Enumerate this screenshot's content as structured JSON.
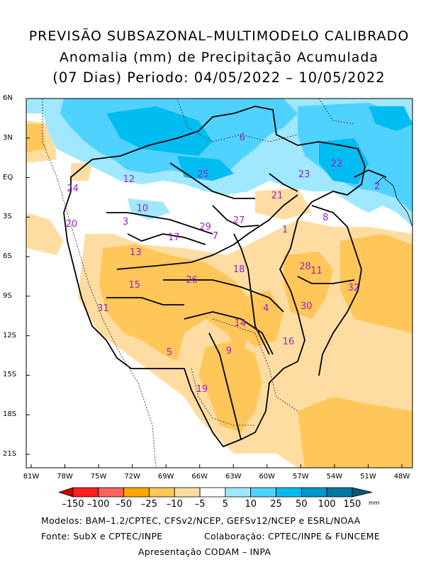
{
  "title": {
    "line1": "PREVISÃO SUBSAZONAL–MULTIMODELO CALIBRADO",
    "line2": "Anomalia (mm) de Precipitação Acumulada",
    "line3": "(07 Dias) Periodo: 04/05/2022 – 10/05/2022"
  },
  "axes": {
    "lat_labels": [
      "6N",
      "3N",
      "EQ",
      "3S",
      "6S",
      "9S",
      "12S",
      "15S",
      "18S",
      "21S"
    ],
    "lon_labels": [
      "81W",
      "78W",
      "75W",
      "72W",
      "69W",
      "66W",
      "63W",
      "60W",
      "57W",
      "54W",
      "51W",
      "48W"
    ]
  },
  "basins": [
    {
      "id": "1",
      "lon": -58.4,
      "lat": -4.0
    },
    {
      "id": "2",
      "lon": -50.2,
      "lat": -0.7
    },
    {
      "id": "3",
      "lon": -72.6,
      "lat": -3.4
    },
    {
      "id": "4",
      "lon": -60.1,
      "lat": -10.0
    },
    {
      "id": "5",
      "lon": -68.7,
      "lat": -13.3
    },
    {
      "id": "6",
      "lon": -62.2,
      "lat": 3.0
    },
    {
      "id": "7",
      "lon": -64.6,
      "lat": -4.5
    },
    {
      "id": "8",
      "lon": -54.8,
      "lat": -3.1
    },
    {
      "id": "9",
      "lon": -63.4,
      "lat": -13.2
    },
    {
      "id": "10",
      "lon": -71.1,
      "lat": -2.4
    },
    {
      "id": "11",
      "lon": -55.6,
      "lat": -7.1
    },
    {
      "id": "12",
      "lon": -72.3,
      "lat": -0.2
    },
    {
      "id": "13",
      "lon": -71.7,
      "lat": -5.7
    },
    {
      "id": "14",
      "lon": -62.4,
      "lat": -11.1
    },
    {
      "id": "15",
      "lon": -71.8,
      "lat": -8.2
    },
    {
      "id": "16",
      "lon": -58.1,
      "lat": -12.5
    },
    {
      "id": "17",
      "lon": -68.3,
      "lat": -4.6
    },
    {
      "id": "18",
      "lon": -62.5,
      "lat": -7.0
    },
    {
      "id": "19",
      "lon": -65.8,
      "lat": -16.1
    },
    {
      "id": "20",
      "lon": -77.4,
      "lat": -3.6
    },
    {
      "id": "21",
      "lon": -59.1,
      "lat": -1.4
    },
    {
      "id": "22",
      "lon": -53.8,
      "lat": 1.0
    },
    {
      "id": "23",
      "lon": -56.7,
      "lat": 0.2
    },
    {
      "id": "24",
      "lon": -77.3,
      "lat": -0.9
    },
    {
      "id": "25",
      "lon": -65.7,
      "lat": 0.2
    },
    {
      "id": "26",
      "lon": -66.7,
      "lat": -7.8
    },
    {
      "id": "27",
      "lon": -62.5,
      "lat": -3.3
    },
    {
      "id": "28",
      "lon": -56.6,
      "lat": -6.8
    },
    {
      "id": "29",
      "lon": -65.5,
      "lat": -3.8
    },
    {
      "id": "30",
      "lon": -56.5,
      "lat": -9.8
    },
    {
      "id": "31",
      "lon": -74.6,
      "lat": -10.0
    },
    {
      "id": "32",
      "lon": -52.3,
      "lat": -8.4
    }
  ],
  "colorbar": {
    "labels": [
      "–150",
      "–100",
      "–50",
      "–25",
      "–10",
      "–5",
      "5",
      "10",
      "25",
      "50",
      "100",
      "150"
    ],
    "colors": [
      "#c80000",
      "#ff1e1e",
      "#ff6060",
      "#ffa600",
      "#ffc659",
      "#ffdda2",
      "#ffffff",
      "#a0e8ff",
      "#50d2ff",
      "#00bcf0",
      "#0096c8",
      "#0079a0",
      "#005a78"
    ],
    "unit": "mm"
  },
  "footer": {
    "models": "Modelos: BAM–1.2/CPTEC, CFSv2/NCEP, GEFSv12/NCEP e ESRL/NOAA",
    "source": "Fonte: SubX e CPTEC/INPE",
    "collab": "Colaboração: CPTEC/INPE & FUNCEME",
    "presentation": "Apresentação CODAM – INPA"
  }
}
